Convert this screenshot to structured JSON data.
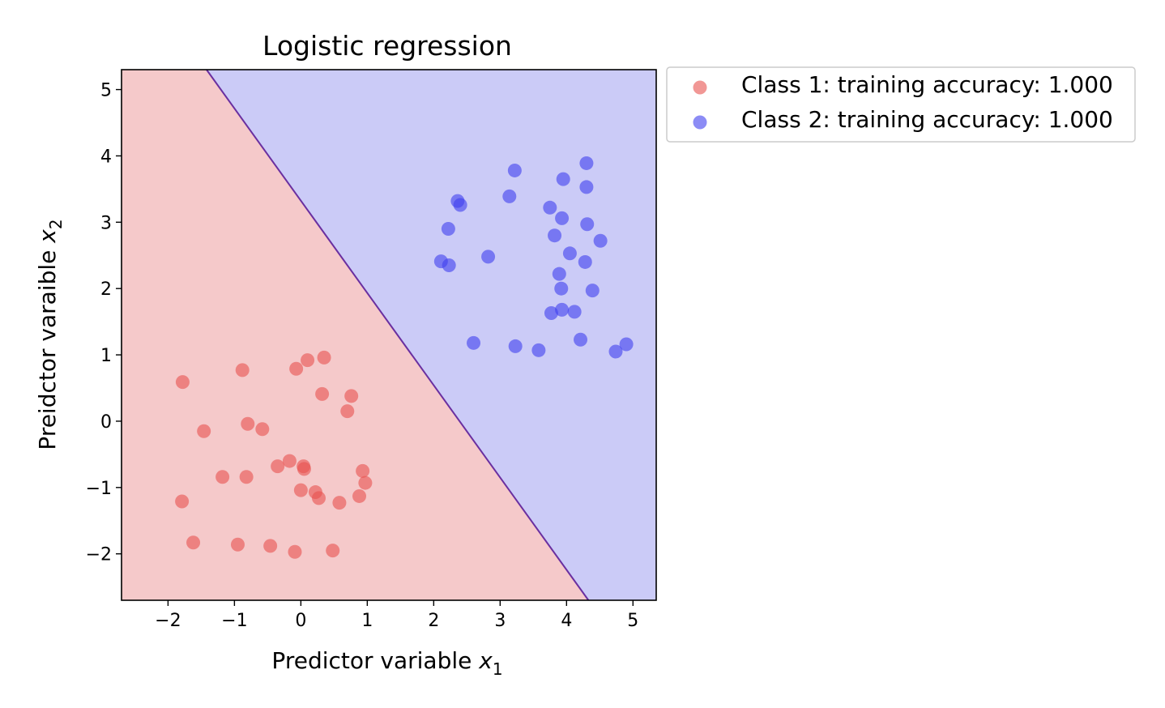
{
  "chart_data": {
    "type": "scatter",
    "title": "Logistic regression",
    "xlabel": "Predictor variable $x_1$",
    "xlabel_parts": {
      "main": "Predictor variable ",
      "var": "x",
      "sub": "1"
    },
    "ylabel": "Preidctor varaible $x_2$",
    "ylabel_parts": {
      "main": "Preidctor varaible ",
      "var": "x",
      "sub": "2"
    },
    "xlim": [
      -2.7,
      5.35
    ],
    "ylim": [
      -2.7,
      5.3
    ],
    "xticks": [
      -2,
      -1,
      0,
      1,
      2,
      3,
      4,
      5
    ],
    "xtick_labels": [
      "−2",
      "−1",
      "0",
      "1",
      "2",
      "3",
      "4",
      "5"
    ],
    "yticks": [
      -2,
      -1,
      0,
      1,
      2,
      3,
      4,
      5
    ],
    "ytick_labels": [
      "−2",
      "−1",
      "0",
      "1",
      "2",
      "3",
      "4",
      "5"
    ],
    "grid": false,
    "legend_placement": "outside-upper-right",
    "decision_boundary": {
      "points": [
        [
          -1.42,
          5.3
        ],
        [
          4.33,
          -2.7
        ]
      ],
      "color": "#6a2fa0"
    },
    "regions": {
      "class1_color": "#f5c9ca",
      "class2_color": "#cbcbf7"
    },
    "series": [
      {
        "name": "Class 1: training accuracy: 1.000",
        "color": "#e8524f",
        "points": [
          [
            -1.78,
            0.59
          ],
          [
            -0.88,
            0.77
          ],
          [
            -0.07,
            0.79
          ],
          [
            0.1,
            0.92
          ],
          [
            0.35,
            0.96
          ],
          [
            0.32,
            0.41
          ],
          [
            0.76,
            0.38
          ],
          [
            0.7,
            0.15
          ],
          [
            -1.46,
            -0.15
          ],
          [
            -0.8,
            -0.04
          ],
          [
            -0.58,
            -0.12
          ],
          [
            -0.35,
            -0.68
          ],
          [
            -0.17,
            -0.6
          ],
          [
            0.04,
            -0.68
          ],
          [
            0.05,
            -0.72
          ],
          [
            -1.18,
            -0.84
          ],
          [
            -0.82,
            -0.84
          ],
          [
            0.0,
            -1.04
          ],
          [
            0.22,
            -1.07
          ],
          [
            0.27,
            -1.16
          ],
          [
            0.58,
            -1.23
          ],
          [
            0.93,
            -0.75
          ],
          [
            0.97,
            -0.93
          ],
          [
            0.88,
            -1.13
          ],
          [
            -1.79,
            -1.21
          ],
          [
            -1.62,
            -1.83
          ],
          [
            -0.95,
            -1.86
          ],
          [
            -0.46,
            -1.88
          ],
          [
            -0.09,
            -1.97
          ],
          [
            0.48,
            -1.95
          ]
        ]
      },
      {
        "name": "Class 2: training accuracy: 1.000",
        "color": "#4040ee",
        "points": [
          [
            4.3,
            3.89
          ],
          [
            3.22,
            3.78
          ],
          [
            3.95,
            3.65
          ],
          [
            4.3,
            3.53
          ],
          [
            2.36,
            3.32
          ],
          [
            2.4,
            3.26
          ],
          [
            3.14,
            3.39
          ],
          [
            3.75,
            3.22
          ],
          [
            3.93,
            3.06
          ],
          [
            2.22,
            2.9
          ],
          [
            4.31,
            2.97
          ],
          [
            3.82,
            2.8
          ],
          [
            4.51,
            2.72
          ],
          [
            2.11,
            2.41
          ],
          [
            2.23,
            2.35
          ],
          [
            2.82,
            2.48
          ],
          [
            4.05,
            2.53
          ],
          [
            4.28,
            2.4
          ],
          [
            3.89,
            2.22
          ],
          [
            3.92,
            2.0
          ],
          [
            4.39,
            1.97
          ],
          [
            3.77,
            1.63
          ],
          [
            3.93,
            1.68
          ],
          [
            4.12,
            1.65
          ],
          [
            2.6,
            1.18
          ],
          [
            3.23,
            1.13
          ],
          [
            3.58,
            1.07
          ],
          [
            4.21,
            1.23
          ],
          [
            4.74,
            1.05
          ],
          [
            4.9,
            1.16
          ]
        ]
      }
    ]
  }
}
